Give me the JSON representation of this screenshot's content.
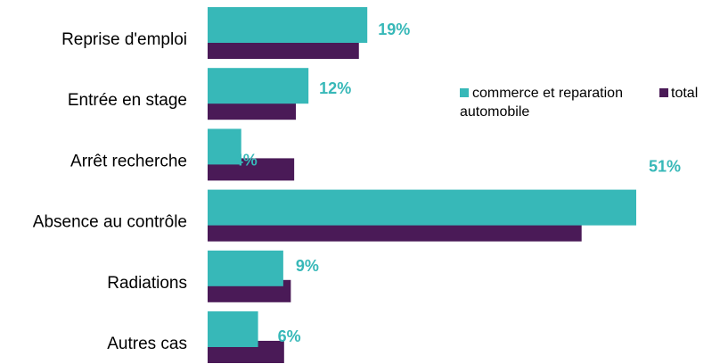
{
  "chart_data": {
    "type": "bar",
    "orientation": "horizontal",
    "categories": [
      "Reprise d'emploi",
      "Entrée en stage",
      "Arrêt recherche",
      "Absence au contrôle",
      "Radiations",
      "Autres cas"
    ],
    "series": [
      {
        "name": "commerce et reparation automobile",
        "color": "#37B8B8",
        "values": [
          19,
          12,
          4,
          51,
          9,
          6
        ],
        "labels": [
          "19%",
          "12%",
          "4%",
          "51%",
          "9%",
          "6%"
        ]
      },
      {
        "name": "total",
        "color": "#4A1A57",
        "values": [
          18,
          10.5,
          10.3,
          44.5,
          9.9,
          9.1
        ]
      }
    ],
    "xlim": [
      0,
      53
    ],
    "legend": {
      "placement": "right-top",
      "entries": [
        "commerce et reparation",
        "automobile",
        "total"
      ]
    },
    "grid": false
  }
}
